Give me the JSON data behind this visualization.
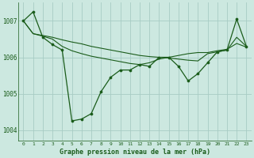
{
  "title": "Graphe pression niveau de la mer (hPa)",
  "background_color": "#cce8e0",
  "grid_color": "#a8ccc4",
  "line_color": "#1a5c1a",
  "xlim": [
    -0.5,
    23.5
  ],
  "ylim": [
    1003.7,
    1007.5
  ],
  "yticks": [
    1004,
    1005,
    1006,
    1007
  ],
  "xticks": [
    0,
    1,
    2,
    3,
    4,
    5,
    6,
    7,
    8,
    9,
    10,
    11,
    12,
    13,
    14,
    15,
    16,
    17,
    18,
    19,
    20,
    21,
    22,
    23
  ],
  "series1_marked": {
    "x": [
      0,
      1,
      2,
      3,
      4,
      5,
      6,
      7,
      8,
      9,
      10,
      11,
      12,
      13,
      14,
      15,
      16,
      17,
      18,
      19,
      20,
      21,
      22,
      23
    ],
    "y": [
      1007.0,
      1007.25,
      1006.55,
      1006.35,
      1006.2,
      1004.25,
      1004.3,
      1004.45,
      1005.05,
      1005.45,
      1005.65,
      1005.65,
      1005.8,
      1005.75,
      1006.0,
      1006.0,
      1005.75,
      1005.35,
      1005.55,
      1005.85,
      1006.15,
      1006.2,
      1007.05,
      1006.3
    ]
  },
  "series2_smooth": {
    "x": [
      0,
      1,
      2,
      3,
      4,
      5,
      6,
      7,
      8,
      9,
      10,
      11,
      12,
      13,
      14,
      15,
      16,
      17,
      18,
      19,
      20,
      21,
      22,
      23
    ],
    "y": [
      1007.0,
      1006.65,
      1006.6,
      1006.55,
      1006.48,
      1006.42,
      1006.37,
      1006.3,
      1006.25,
      1006.2,
      1006.15,
      1006.1,
      1006.05,
      1006.02,
      1006.0,
      1005.98,
      1005.95,
      1005.92,
      1005.9,
      1006.1,
      1006.15,
      1006.2,
      1006.55,
      1006.3
    ]
  },
  "series3_smooth": {
    "x": [
      0,
      1,
      2,
      3,
      4,
      5,
      6,
      7,
      8,
      9,
      10,
      11,
      12,
      13,
      14,
      15,
      16,
      17,
      18,
      19,
      20,
      21,
      22,
      23
    ],
    "y": [
      1007.0,
      1006.65,
      1006.58,
      1006.5,
      1006.3,
      1006.18,
      1006.1,
      1006.03,
      1005.98,
      1005.93,
      1005.88,
      1005.83,
      1005.8,
      1005.85,
      1005.95,
      1006.0,
      1006.05,
      1006.1,
      1006.13,
      1006.13,
      1006.18,
      1006.22,
      1006.38,
      1006.28
    ]
  }
}
